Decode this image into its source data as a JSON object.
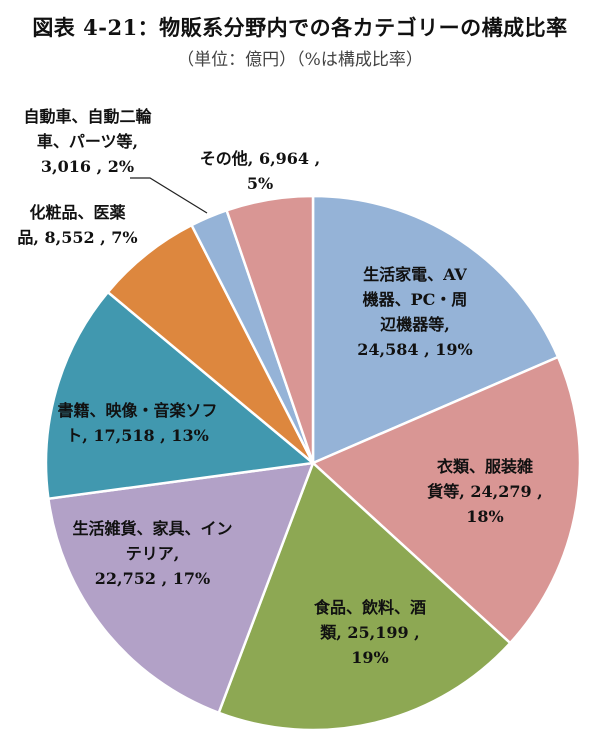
{
  "title": "図表 4-21：物販系分野内での各カテゴリーの構成比率",
  "subtitle": "（単位：億円）（%は構成比率）",
  "chart_data": {
    "type": "pie",
    "title": "図表 4-21：物販系分野内での各カテゴリーの構成比率",
    "subtitle": "（単位：億円）（%は構成比率）",
    "unit": "億円",
    "start_angle_deg": 0,
    "direction": "clockwise",
    "slices": [
      {
        "label": "生活家電、AV機器、PC・周辺機器等",
        "value": 24584,
        "percent": 19,
        "color": "#95B3D7"
      },
      {
        "label": "衣類、服装雑貨等",
        "value": 24279,
        "percent": 18,
        "color": "#D99694"
      },
      {
        "label": "食品、飲料、酒類",
        "value": 25199,
        "percent": 19,
        "color": "#8DA853"
      },
      {
        "label": "生活雑貨、家具、インテリア",
        "value": 22752,
        "percent": 17,
        "color": "#B2A1C7"
      },
      {
        "label": "書籍、映像・音楽ソフト",
        "value": 17518,
        "percent": 13,
        "color": "#4198AF"
      },
      {
        "label": "化粧品、医薬品",
        "value": 8552,
        "percent": 7,
        "color": "#DD873E"
      },
      {
        "label": "自動車、自動二輪車、パーツ等",
        "value": 3016,
        "percent": 2,
        "color": "#95B3D7"
      },
      {
        "label": "その他",
        "value": 6964,
        "percent": 5,
        "color": "#D99694"
      }
    ]
  },
  "labels": [
    {
      "text": "生活家電、AV\n機器、PC・周\n辺機器等,\n24,584 , 19%"
    },
    {
      "text": "衣類、服装雑\n貨等, 24,279 ,\n18%"
    },
    {
      "text": "食品、飲料、酒\n類, 25,199 ,\n19%"
    },
    {
      "text": "生活雑貨、家具、イン\nテリア,\n22,752 , 17%"
    },
    {
      "text": "書籍、映像・音楽ソフ\nト, 17,518 , 13%"
    },
    {
      "text": "化粧品、医薬\n品, 8,552 , 7%"
    },
    {
      "text": "自動車、自動二輪\n車、パーツ等,\n3,016 , 2%"
    },
    {
      "text": "その他, 6,964 ,\n5%"
    }
  ]
}
